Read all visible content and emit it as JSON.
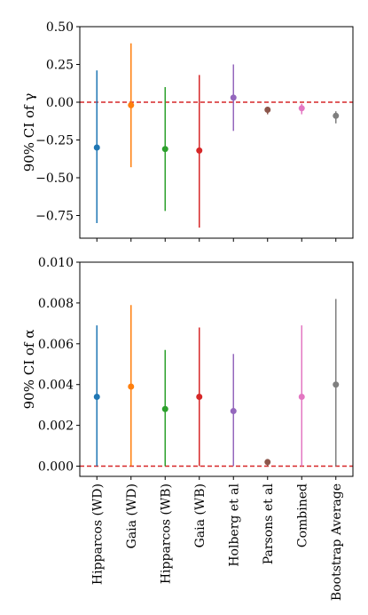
{
  "chart_data": [
    {
      "type": "scatter",
      "subtype": "point-with-interval",
      "ylabel": "90% CI of γ",
      "ylim": [
        -0.9,
        0.5
      ],
      "yticks": [
        0.5,
        0.25,
        0.0,
        -0.25,
        -0.5,
        -0.75
      ],
      "ytick_labels": [
        "0.50",
        "0.25",
        "0.00",
        "−0.25",
        "−0.50",
        "−0.75"
      ],
      "reference_line": {
        "y": 0.0,
        "style": "dashed",
        "color": "#d62728"
      },
      "categories": [
        "Hipparcos (WD)",
        "Gaia (WD)",
        "Hipparcos (WB)",
        "Gaia (WB)",
        "Holberg et al",
        "Parsons et al",
        "Combined",
        "Bootstrap Average"
      ],
      "colors": [
        "#1f77b4",
        "#ff7f0e",
        "#2ca02c",
        "#d62728",
        "#9467bd",
        "#8c564b",
        "#e377c2",
        "#7f7f7f"
      ],
      "points": [
        -0.3,
        -0.02,
        -0.31,
        -0.32,
        0.03,
        -0.05,
        -0.04,
        -0.09
      ],
      "lower": [
        -0.8,
        -0.43,
        -0.72,
        -0.83,
        -0.19,
        -0.08,
        -0.08,
        -0.14
      ],
      "upper": [
        0.21,
        0.39,
        0.1,
        0.18,
        0.25,
        -0.03,
        -0.01,
        -0.06
      ]
    },
    {
      "type": "scatter",
      "subtype": "point-with-interval",
      "ylabel": "90% CI of α",
      "ylim": [
        -0.0005,
        0.01
      ],
      "yticks": [
        0.01,
        0.008,
        0.006,
        0.004,
        0.002,
        0.0
      ],
      "ytick_labels": [
        "0.010",
        "0.008",
        "0.006",
        "0.004",
        "0.002",
        "0.000"
      ],
      "reference_line": {
        "y": 0.0,
        "style": "dashed",
        "color": "#d62728"
      },
      "categories": [
        "Hipparcos (WD)",
        "Gaia (WD)",
        "Hipparcos (WB)",
        "Gaia (WB)",
        "Holberg et al",
        "Parsons et al",
        "Combined",
        "Bootstrap Average"
      ],
      "colors": [
        "#1f77b4",
        "#ff7f0e",
        "#2ca02c",
        "#d62728",
        "#9467bd",
        "#8c564b",
        "#e377c2",
        "#7f7f7f"
      ],
      "points": [
        0.0034,
        0.0039,
        0.0028,
        0.0034,
        0.0027,
        0.0002,
        0.0034,
        0.004
      ],
      "lower": [
        0.0,
        0.0,
        0.0,
        0.0,
        0.0,
        0.0,
        0.0,
        0.0
      ],
      "upper": [
        0.0069,
        0.0079,
        0.0057,
        0.0068,
        0.0055,
        0.0002,
        0.0069,
        0.0082
      ]
    }
  ]
}
